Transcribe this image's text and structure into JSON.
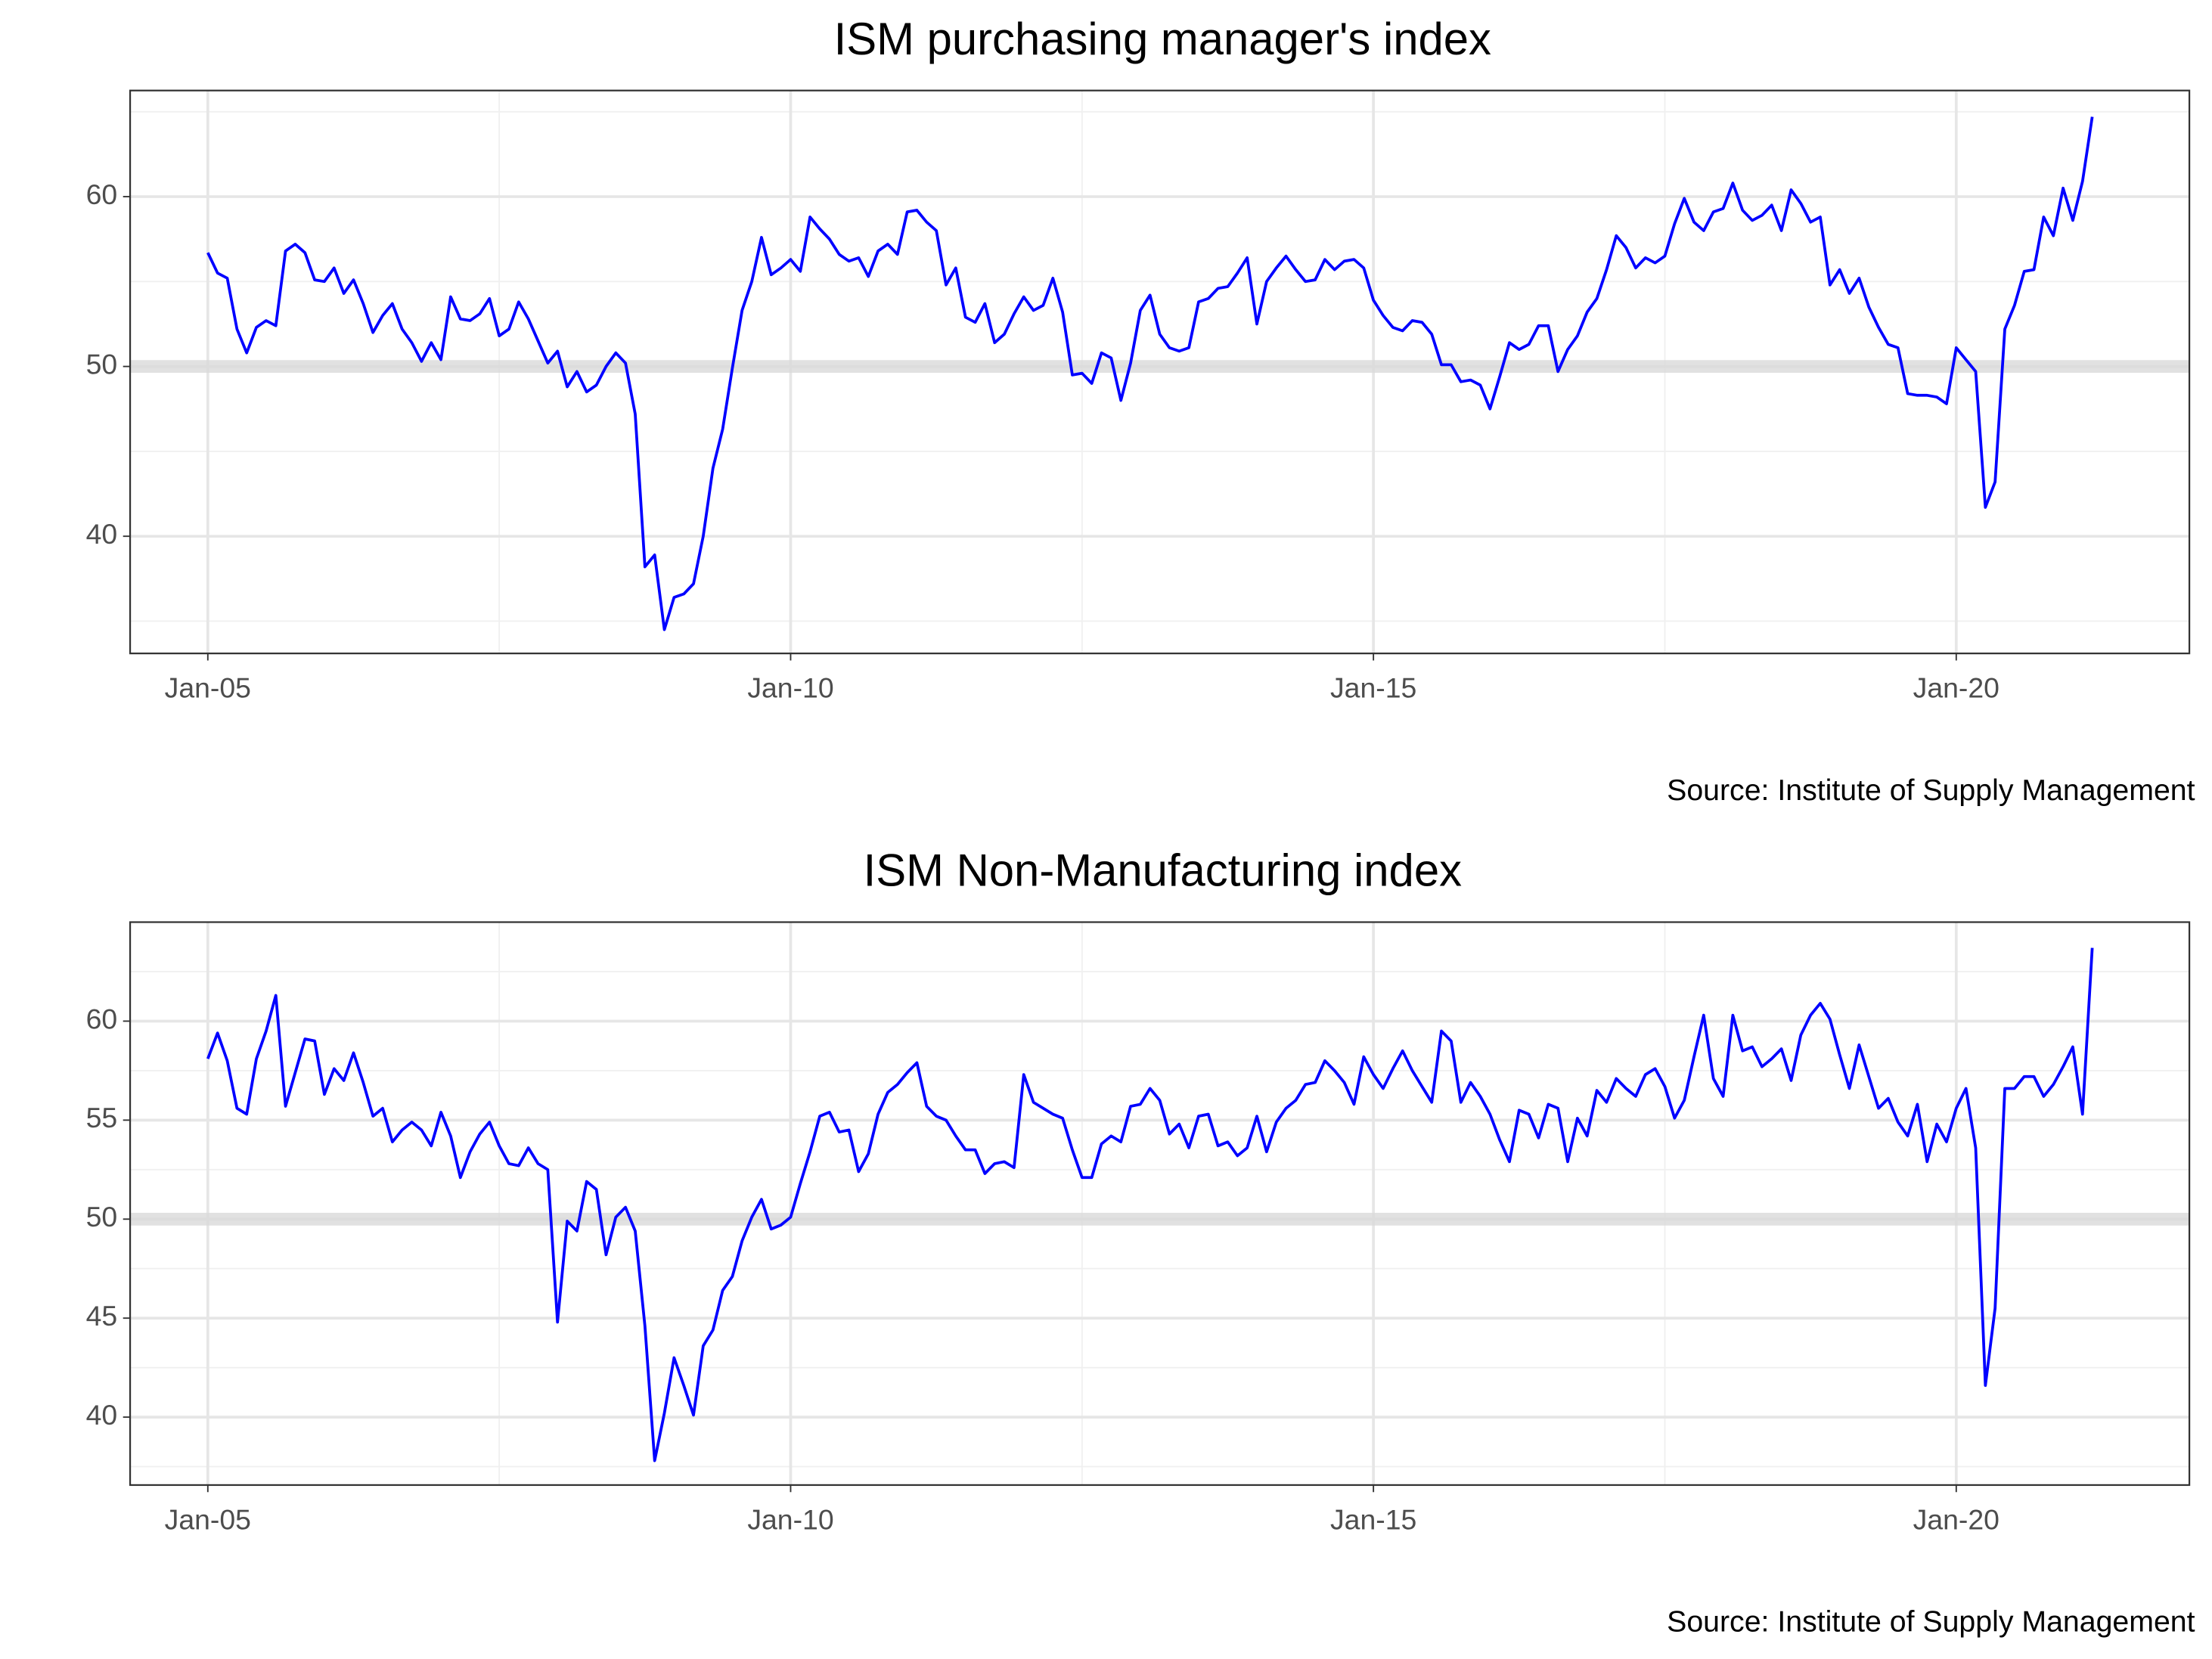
{
  "chart_data": [
    {
      "type": "line",
      "title": "ISM purchasing manager's index",
      "caption": "Source: Institute of Supply Management",
      "color": "#0000ff",
      "x": [
        "2005-01",
        "2005-02",
        "2005-03",
        "2005-04",
        "2005-05",
        "2005-06",
        "2005-07",
        "2005-08",
        "2005-09",
        "2005-10",
        "2005-11",
        "2005-12",
        "2006-01",
        "2006-02",
        "2006-03",
        "2006-04",
        "2006-05",
        "2006-06",
        "2006-07",
        "2006-08",
        "2006-09",
        "2006-10",
        "2006-11",
        "2006-12",
        "2007-01",
        "2007-02",
        "2007-03",
        "2007-04",
        "2007-05",
        "2007-06",
        "2007-07",
        "2007-08",
        "2007-09",
        "2007-10",
        "2007-11",
        "2007-12",
        "2008-01",
        "2008-02",
        "2008-03",
        "2008-04",
        "2008-05",
        "2008-06",
        "2008-07",
        "2008-08",
        "2008-09",
        "2008-10",
        "2008-11",
        "2008-12",
        "2009-01",
        "2009-02",
        "2009-03",
        "2009-04",
        "2009-05",
        "2009-06",
        "2009-07",
        "2009-08",
        "2009-09",
        "2009-10",
        "2009-11",
        "2009-12",
        "2010-01",
        "2010-02",
        "2010-03",
        "2010-04",
        "2010-05",
        "2010-06",
        "2010-07",
        "2010-08",
        "2010-09",
        "2010-10",
        "2010-11",
        "2010-12",
        "2011-01",
        "2011-02",
        "2011-03",
        "2011-04",
        "2011-05",
        "2011-06",
        "2011-07",
        "2011-08",
        "2011-09",
        "2011-10",
        "2011-11",
        "2011-12",
        "2012-01",
        "2012-02",
        "2012-03",
        "2012-04",
        "2012-05",
        "2012-06",
        "2012-07",
        "2012-08",
        "2012-09",
        "2012-10",
        "2012-11",
        "2012-12",
        "2013-01",
        "2013-02",
        "2013-03",
        "2013-04",
        "2013-05",
        "2013-06",
        "2013-07",
        "2013-08",
        "2013-09",
        "2013-10",
        "2013-11",
        "2013-12",
        "2014-01",
        "2014-02",
        "2014-03",
        "2014-04",
        "2014-05",
        "2014-06",
        "2014-07",
        "2014-08",
        "2014-09",
        "2014-10",
        "2014-11",
        "2014-12",
        "2015-01",
        "2015-02",
        "2015-03",
        "2015-04",
        "2015-05",
        "2015-06",
        "2015-07",
        "2015-08",
        "2015-09",
        "2015-10",
        "2015-11",
        "2015-12",
        "2016-01",
        "2016-02",
        "2016-03",
        "2016-04",
        "2016-05",
        "2016-06",
        "2016-07",
        "2016-08",
        "2016-09",
        "2016-10",
        "2016-11",
        "2016-12",
        "2017-01",
        "2017-02",
        "2017-03",
        "2017-04",
        "2017-05",
        "2017-06",
        "2017-07",
        "2017-08",
        "2017-09",
        "2017-10",
        "2017-11",
        "2017-12",
        "2018-01",
        "2018-02",
        "2018-03",
        "2018-04",
        "2018-05",
        "2018-06",
        "2018-07",
        "2018-08",
        "2018-09",
        "2018-10",
        "2018-11",
        "2018-12",
        "2019-01",
        "2019-02",
        "2019-03",
        "2019-04",
        "2019-05",
        "2019-06",
        "2019-07",
        "2019-08",
        "2019-09",
        "2019-10",
        "2019-11",
        "2019-12",
        "2020-01",
        "2020-02",
        "2020-03",
        "2020-04",
        "2020-05",
        "2020-06",
        "2020-07",
        "2020-08",
        "2020-09",
        "2020-10",
        "2020-11",
        "2020-12",
        "2021-01",
        "2021-02",
        "2021-03"
      ],
      "values": [
        56.7,
        55.5,
        55.2,
        52.2,
        50.8,
        52.3,
        52.7,
        52.4,
        56.8,
        57.2,
        56.7,
        55.1,
        55.0,
        55.8,
        54.3,
        55.1,
        53.7,
        52.0,
        53.0,
        53.7,
        52.2,
        51.4,
        50.3,
        51.4,
        50.4,
        54.1,
        52.8,
        52.7,
        53.1,
        54.0,
        51.8,
        52.2,
        53.8,
        52.8,
        51.5,
        50.2,
        50.9,
        48.8,
        49.7,
        48.5,
        48.9,
        50.0,
        50.8,
        50.2,
        47.2,
        38.2,
        38.9,
        34.5,
        36.4,
        36.6,
        37.2,
        40.0,
        44.0,
        46.3,
        49.9,
        53.3,
        55.0,
        57.6,
        55.4,
        55.8,
        56.3,
        55.6,
        58.8,
        58.1,
        57.5,
        56.6,
        56.2,
        56.4,
        55.3,
        56.8,
        57.2,
        56.6,
        59.1,
        59.2,
        58.5,
        58.0,
        54.8,
        55.8,
        52.9,
        52.6,
        53.7,
        51.4,
        51.9,
        53.1,
        54.1,
        53.3,
        53.6,
        55.2,
        53.2,
        49.5,
        49.6,
        49.0,
        50.8,
        50.5,
        48.0,
        50.2,
        53.3,
        54.2,
        51.9,
        51.1,
        50.9,
        51.1,
        53.8,
        54.0,
        54.6,
        54.7,
        55.5,
        56.4,
        52.5,
        55.0,
        55.8,
        56.5,
        55.7,
        55.0,
        55.1,
        56.3,
        55.7,
        56.2,
        56.3,
        55.8,
        53.9,
        53.0,
        52.3,
        52.1,
        52.7,
        52.6,
        51.9,
        50.1,
        50.1,
        49.1,
        49.2,
        48.9,
        47.5,
        49.4,
        51.4,
        51.0,
        51.3,
        52.4,
        52.4,
        49.7,
        51.0,
        51.8,
        53.2,
        54.0,
        55.7,
        57.7,
        57.0,
        55.8,
        56.4,
        56.1,
        56.5,
        58.4,
        59.9,
        58.5,
        58.0,
        59.1,
        59.3,
        60.8,
        59.2,
        58.6,
        58.9,
        59.5,
        58.0,
        60.4,
        59.6,
        58.5,
        58.8,
        54.8,
        55.7,
        54.3,
        55.2,
        53.5,
        52.3,
        51.3,
        51.1,
        48.4,
        48.3,
        48.3,
        48.2,
        47.8,
        51.1,
        50.4,
        49.7,
        41.7,
        43.2,
        52.2,
        53.6,
        55.6,
        55.7,
        58.8,
        57.7,
        60.5,
        58.6,
        60.9,
        64.7
      ],
      "xlim": [
        "2004-05",
        "2022-01"
      ],
      "xticks": [
        {
          "value": "2005-01",
          "label": "Jan-05"
        },
        {
          "value": "2010-01",
          "label": "Jan-10"
        },
        {
          "value": "2015-01",
          "label": "Jan-15"
        },
        {
          "value": "2020-01",
          "label": "Jan-20"
        }
      ],
      "ylim": [
        33.1,
        66.25
      ],
      "yticks": [
        40,
        50,
        60
      ],
      "hline": 50,
      "grid": true
    },
    {
      "type": "line",
      "title": "ISM Non-Manufacturing index",
      "caption": "Source: Institute of Supply Management",
      "color": "#0000ff",
      "x": [
        "2005-01",
        "2005-02",
        "2005-03",
        "2005-04",
        "2005-05",
        "2005-06",
        "2005-07",
        "2005-08",
        "2005-09",
        "2005-10",
        "2005-11",
        "2005-12",
        "2006-01",
        "2006-02",
        "2006-03",
        "2006-04",
        "2006-05",
        "2006-06",
        "2006-07",
        "2006-08",
        "2006-09",
        "2006-10",
        "2006-11",
        "2006-12",
        "2007-01",
        "2007-02",
        "2007-03",
        "2007-04",
        "2007-05",
        "2007-06",
        "2007-07",
        "2007-08",
        "2007-09",
        "2007-10",
        "2007-11",
        "2007-12",
        "2008-01",
        "2008-02",
        "2008-03",
        "2008-04",
        "2008-05",
        "2008-06",
        "2008-07",
        "2008-08",
        "2008-09",
        "2008-10",
        "2008-11",
        "2008-12",
        "2009-01",
        "2009-02",
        "2009-03",
        "2009-04",
        "2009-05",
        "2009-06",
        "2009-07",
        "2009-08",
        "2009-09",
        "2009-10",
        "2009-11",
        "2009-12",
        "2010-01",
        "2010-02",
        "2010-03",
        "2010-04",
        "2010-05",
        "2010-06",
        "2010-07",
        "2010-08",
        "2010-09",
        "2010-10",
        "2010-11",
        "2010-12",
        "2011-01",
        "2011-02",
        "2011-03",
        "2011-04",
        "2011-05",
        "2011-06",
        "2011-07",
        "2011-08",
        "2011-09",
        "2011-10",
        "2011-11",
        "2011-12",
        "2012-01",
        "2012-02",
        "2012-03",
        "2012-04",
        "2012-05",
        "2012-06",
        "2012-07",
        "2012-08",
        "2012-09",
        "2012-10",
        "2012-11",
        "2012-12",
        "2013-01",
        "2013-02",
        "2013-03",
        "2013-04",
        "2013-05",
        "2013-06",
        "2013-07",
        "2013-08",
        "2013-09",
        "2013-10",
        "2013-11",
        "2013-12",
        "2014-01",
        "2014-02",
        "2014-03",
        "2014-04",
        "2014-05",
        "2014-06",
        "2014-07",
        "2014-08",
        "2014-09",
        "2014-10",
        "2014-11",
        "2014-12",
        "2015-01",
        "2015-02",
        "2015-03",
        "2015-04",
        "2015-05",
        "2015-06",
        "2015-07",
        "2015-08",
        "2015-09",
        "2015-10",
        "2015-11",
        "2015-12",
        "2016-01",
        "2016-02",
        "2016-03",
        "2016-04",
        "2016-05",
        "2016-06",
        "2016-07",
        "2016-08",
        "2016-09",
        "2016-10",
        "2016-11",
        "2016-12",
        "2017-01",
        "2017-02",
        "2017-03",
        "2017-04",
        "2017-05",
        "2017-06",
        "2017-07",
        "2017-08",
        "2017-09",
        "2017-10",
        "2017-11",
        "2017-12",
        "2018-01",
        "2018-02",
        "2018-03",
        "2018-04",
        "2018-05",
        "2018-06",
        "2018-07",
        "2018-08",
        "2018-09",
        "2018-10",
        "2018-11",
        "2018-12",
        "2019-01",
        "2019-02",
        "2019-03",
        "2019-04",
        "2019-05",
        "2019-06",
        "2019-07",
        "2019-08",
        "2019-09",
        "2019-10",
        "2019-11",
        "2019-12",
        "2020-01",
        "2020-02",
        "2020-03",
        "2020-04",
        "2020-05",
        "2020-06",
        "2020-07",
        "2020-08",
        "2020-09",
        "2020-10",
        "2020-11",
        "2020-12",
        "2021-01",
        "2021-02",
        "2021-03"
      ],
      "values": [
        58.1,
        59.4,
        58.0,
        55.6,
        55.3,
        58.1,
        59.5,
        61.3,
        55.7,
        57.4,
        59.1,
        59.0,
        56.3,
        57.6,
        57.0,
        58.4,
        56.9,
        55.2,
        55.6,
        53.9,
        54.5,
        54.9,
        54.5,
        53.7,
        55.4,
        54.2,
        52.1,
        53.4,
        54.3,
        54.9,
        53.7,
        52.8,
        52.7,
        53.6,
        52.8,
        52.5,
        44.8,
        49.9,
        49.4,
        51.9,
        51.5,
        48.2,
        50.1,
        50.6,
        49.4,
        44.6,
        37.8,
        40.2,
        43.0,
        41.6,
        40.1,
        43.6,
        44.4,
        46.4,
        47.1,
        48.9,
        50.1,
        51.0,
        49.5,
        49.7,
        50.1,
        51.8,
        53.4,
        55.2,
        55.4,
        54.4,
        54.5,
        52.4,
        53.3,
        55.3,
        56.4,
        56.8,
        57.4,
        57.9,
        55.7,
        55.2,
        55.0,
        54.2,
        53.5,
        53.5,
        52.3,
        52.8,
        52.9,
        52.6,
        57.3,
        55.9,
        55.6,
        55.3,
        55.1,
        53.5,
        52.1,
        52.1,
        53.8,
        54.2,
        53.9,
        55.7,
        55.8,
        56.6,
        56.0,
        54.3,
        54.8,
        53.6,
        55.2,
        55.3,
        53.7,
        53.9,
        53.2,
        53.6,
        55.2,
        53.4,
        54.9,
        55.6,
        56.0,
        56.8,
        56.9,
        58.0,
        57.5,
        56.9,
        55.8,
        58.2,
        57.3,
        56.6,
        57.6,
        58.5,
        57.5,
        56.7,
        55.9,
        59.5,
        59.0,
        55.9,
        56.9,
        56.2,
        55.3,
        54.0,
        52.9,
        55.5,
        55.3,
        54.1,
        55.8,
        55.6,
        52.9,
        55.1,
        54.2,
        56.5,
        55.9,
        57.1,
        56.6,
        56.2,
        57.3,
        57.6,
        56.7,
        55.1,
        56.0,
        58.2,
        60.3,
        57.1,
        56.2,
        60.3,
        58.5,
        58.7,
        57.7,
        58.1,
        58.6,
        57.0,
        59.3,
        60.3,
        60.9,
        60.1,
        58.3,
        56.6,
        58.8,
        57.2,
        55.6,
        56.1,
        54.9,
        54.2,
        55.8,
        52.9,
        54.8,
        53.9,
        55.6,
        56.6,
        53.6,
        41.6,
        45.5,
        56.6,
        56.6,
        57.2,
        57.2,
        56.2,
        56.8,
        57.7,
        58.7,
        55.3,
        63.7
      ],
      "xlim": [
        "2004-05",
        "2022-01"
      ],
      "xticks": [
        {
          "value": "2005-01",
          "label": "Jan-05"
        },
        {
          "value": "2010-01",
          "label": "Jan-10"
        },
        {
          "value": "2015-01",
          "label": "Jan-15"
        },
        {
          "value": "2020-01",
          "label": "Jan-20"
        }
      ],
      "ylim": [
        36.57,
        65
      ],
      "yticks": [
        40,
        45,
        50,
        55,
        60
      ],
      "hline": 50,
      "grid": true
    }
  ]
}
